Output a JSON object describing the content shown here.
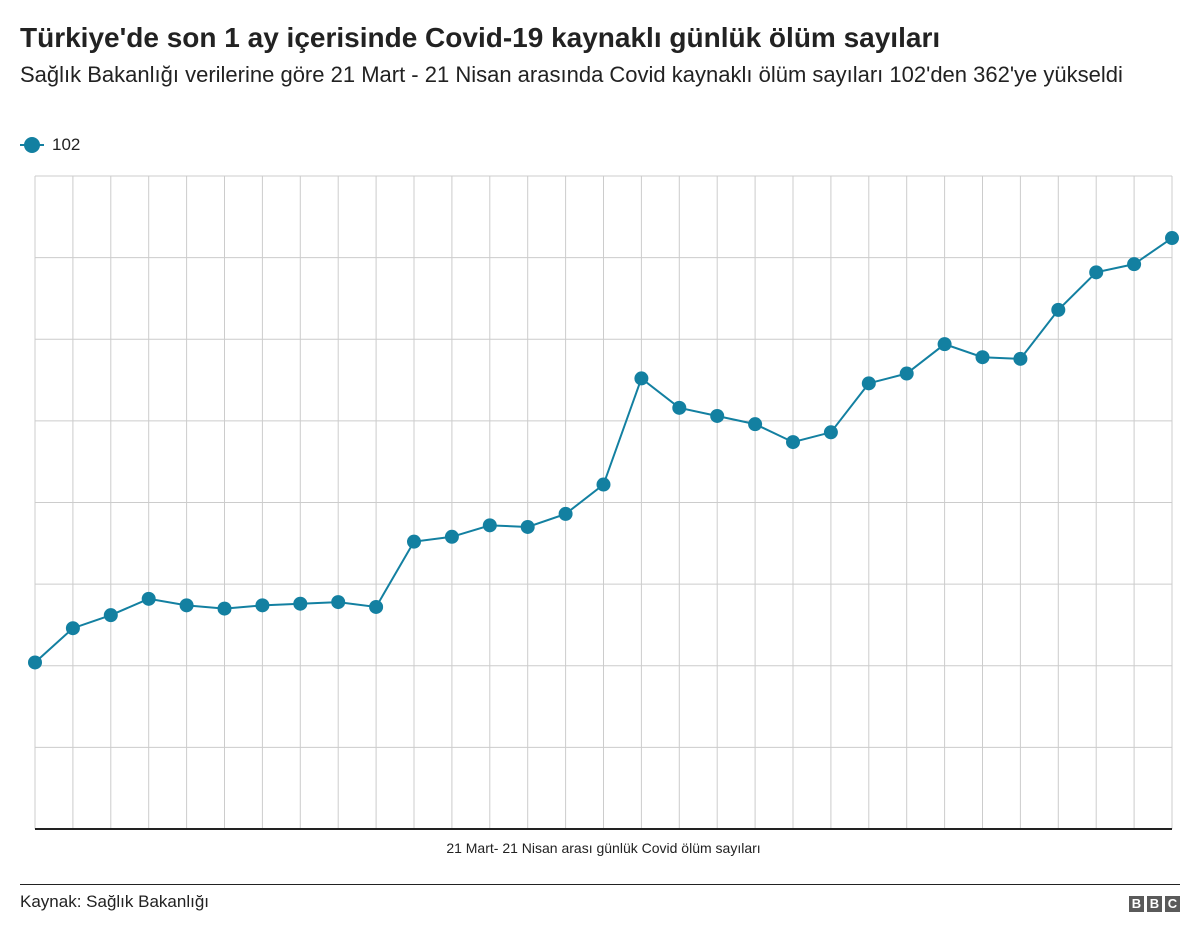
{
  "title": "Türkiye'de son 1 ay içerisinde Covid-19 kaynaklı günlük ölüm sayıları",
  "subtitle": "Sağlık Bakanlığı verilerine göre 21 Mart - 21 Nisan arasında Covid kaynaklı ölüm sayıları 102'den 362'ye yükseldi",
  "source": "Kaynak: Sağlık Bakanlığı",
  "logo_letters": [
    "B",
    "B",
    "C"
  ],
  "colors": {
    "series": "#1380A1",
    "grid": "#cccccc",
    "axis": "#222222"
  },
  "chart_data": {
    "type": "line",
    "title": "Türkiye'de son 1 ay içerisinde Covid-19 kaynaklı günlük ölüm sayıları",
    "subtitle": "Sağlık Bakanlığı verilerine göre 21 Mart - 21 Nisan arasında Covid kaynaklı ölüm sayıları 102'den 362'ye yükseldi",
    "xlabel": "21 Mart- 21 Nisan arası günlük Covid ölüm sayıları",
    "ylabel": "",
    "ylim": [
      0,
      400
    ],
    "y_gridlines": [
      0,
      50,
      100,
      150,
      200,
      250,
      300,
      350,
      400
    ],
    "grid": true,
    "tick_labels_shown": false,
    "legend_position": "top-left",
    "series": [
      {
        "name": "102",
        "values": [
          102,
          123,
          131,
          141,
          137,
          135,
          137,
          138,
          139,
          136,
          176,
          179,
          186,
          185,
          193,
          211,
          276,
          258,
          253,
          248,
          237,
          243,
          273,
          279,
          297,
          289,
          288,
          318,
          341,
          346,
          362
        ]
      }
    ]
  }
}
